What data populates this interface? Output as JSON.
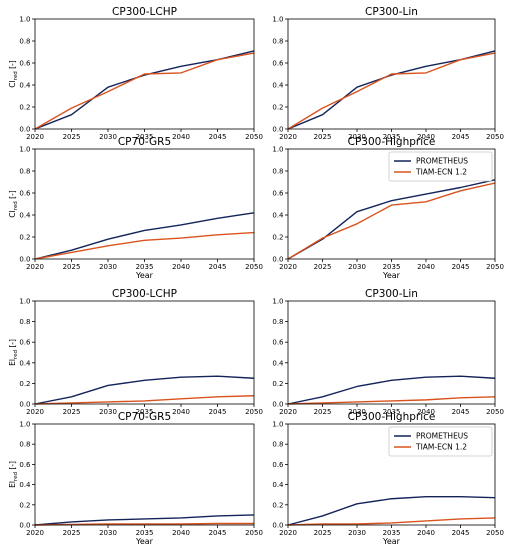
{
  "chart_data": [
    {
      "type": "line",
      "title": "CP300-LCHP",
      "xlabel": "",
      "ylabel": "CI_red [-]",
      "x": [
        2020,
        2025,
        2030,
        2035,
        2040,
        2045,
        2050
      ],
      "xlim": [
        2020,
        2050
      ],
      "ylim": [
        0,
        1
      ],
      "series": [
        {
          "name": "PROMETHEUS",
          "values": [
            0.0,
            0.13,
            0.38,
            0.49,
            0.57,
            0.63,
            0.71
          ]
        },
        {
          "name": "TIAM-ECN 1.2",
          "values": [
            0.0,
            0.19,
            0.34,
            0.5,
            0.51,
            0.63,
            0.69
          ]
        }
      ]
    },
    {
      "type": "line",
      "title": "CP300-Lin",
      "xlabel": "",
      "ylabel": "",
      "x": [
        2020,
        2025,
        2030,
        2035,
        2040,
        2045,
        2050
      ],
      "xlim": [
        2020,
        2050
      ],
      "ylim": [
        0,
        1
      ],
      "series": [
        {
          "name": "PROMETHEUS",
          "values": [
            0.0,
            0.13,
            0.38,
            0.49,
            0.57,
            0.63,
            0.71
          ]
        },
        {
          "name": "TIAM-ECN 1.2",
          "values": [
            0.0,
            0.19,
            0.34,
            0.5,
            0.51,
            0.63,
            0.69
          ]
        }
      ]
    },
    {
      "type": "line",
      "title": "CP70-GR5",
      "xlabel": "Year",
      "ylabel": "CI_red [-]",
      "x": [
        2020,
        2025,
        2030,
        2035,
        2040,
        2045,
        2050
      ],
      "xlim": [
        2020,
        2050
      ],
      "ylim": [
        0,
        1
      ],
      "series": [
        {
          "name": "PROMETHEUS",
          "values": [
            0.0,
            0.08,
            0.18,
            0.26,
            0.31,
            0.37,
            0.42
          ]
        },
        {
          "name": "TIAM-ECN 1.2",
          "values": [
            0.0,
            0.06,
            0.12,
            0.17,
            0.19,
            0.22,
            0.24
          ]
        }
      ]
    },
    {
      "type": "line",
      "title": "CP300-Highprice",
      "xlabel": "Year",
      "ylabel": "",
      "x": [
        2020,
        2025,
        2030,
        2035,
        2040,
        2045,
        2050
      ],
      "xlim": [
        2020,
        2050
      ],
      "ylim": [
        0,
        1
      ],
      "legend": "top-right",
      "series": [
        {
          "name": "PROMETHEUS",
          "values": [
            0.0,
            0.18,
            0.43,
            0.53,
            0.59,
            0.65,
            0.72
          ]
        },
        {
          "name": "TIAM-ECN 1.2",
          "values": [
            0.0,
            0.19,
            0.32,
            0.49,
            0.52,
            0.62,
            0.69
          ]
        }
      ]
    },
    {
      "type": "line",
      "title": "CP300-LCHP",
      "xlabel": "",
      "ylabel": "El_red [-]",
      "x": [
        2020,
        2025,
        2030,
        2035,
        2040,
        2045,
        2050
      ],
      "xlim": [
        2020,
        2050
      ],
      "ylim": [
        0,
        1
      ],
      "series": [
        {
          "name": "PROMETHEUS",
          "values": [
            0.0,
            0.07,
            0.18,
            0.23,
            0.26,
            0.27,
            0.25
          ]
        },
        {
          "name": "TIAM-ECN 1.2",
          "values": [
            0.0,
            0.01,
            0.02,
            0.03,
            0.05,
            0.07,
            0.08
          ]
        }
      ]
    },
    {
      "type": "line",
      "title": "CP300-Lin",
      "xlabel": "",
      "ylabel": "",
      "x": [
        2020,
        2025,
        2030,
        2035,
        2040,
        2045,
        2050
      ],
      "xlim": [
        2020,
        2050
      ],
      "ylim": [
        0,
        1
      ],
      "series": [
        {
          "name": "PROMETHEUS",
          "values": [
            0.0,
            0.07,
            0.17,
            0.23,
            0.26,
            0.27,
            0.25
          ]
        },
        {
          "name": "TIAM-ECN 1.2",
          "values": [
            0.0,
            0.01,
            0.02,
            0.03,
            0.04,
            0.06,
            0.07
          ]
        }
      ]
    },
    {
      "type": "line",
      "title": "CP70-GR5",
      "xlabel": "Year",
      "ylabel": "El_red [-]",
      "x": [
        2020,
        2025,
        2030,
        2035,
        2040,
        2045,
        2050
      ],
      "xlim": [
        2020,
        2050
      ],
      "ylim": [
        0,
        1
      ],
      "series": [
        {
          "name": "PROMETHEUS",
          "values": [
            0.0,
            0.03,
            0.05,
            0.06,
            0.07,
            0.09,
            0.1
          ]
        },
        {
          "name": "TIAM-ECN 1.2",
          "values": [
            0.0,
            0.005,
            0.01,
            0.01,
            0.01,
            0.015,
            0.015
          ]
        }
      ]
    },
    {
      "type": "line",
      "title": "CP300-Highprice",
      "xlabel": "Year",
      "ylabel": "",
      "x": [
        2020,
        2025,
        2030,
        2035,
        2040,
        2045,
        2050
      ],
      "xlim": [
        2020,
        2050
      ],
      "ylim": [
        0,
        1
      ],
      "legend": "top-right",
      "series": [
        {
          "name": "PROMETHEUS",
          "values": [
            0.0,
            0.09,
            0.21,
            0.26,
            0.28,
            0.28,
            0.27
          ]
        },
        {
          "name": "TIAM-ECN 1.2",
          "values": [
            0.0,
            0.01,
            0.01,
            0.02,
            0.04,
            0.06,
            0.07
          ]
        }
      ]
    }
  ],
  "colors": {
    "PROMETHEUS": "#14245a",
    "TIAM-ECN 1.2": "#d9531e"
  },
  "x_ticks": [
    "2020",
    "2025",
    "2030",
    "2035",
    "2040",
    "2045",
    "2050"
  ],
  "y_ticks": [
    "0.0",
    "0.2",
    "0.4",
    "0.6",
    "0.8",
    "1.0"
  ]
}
